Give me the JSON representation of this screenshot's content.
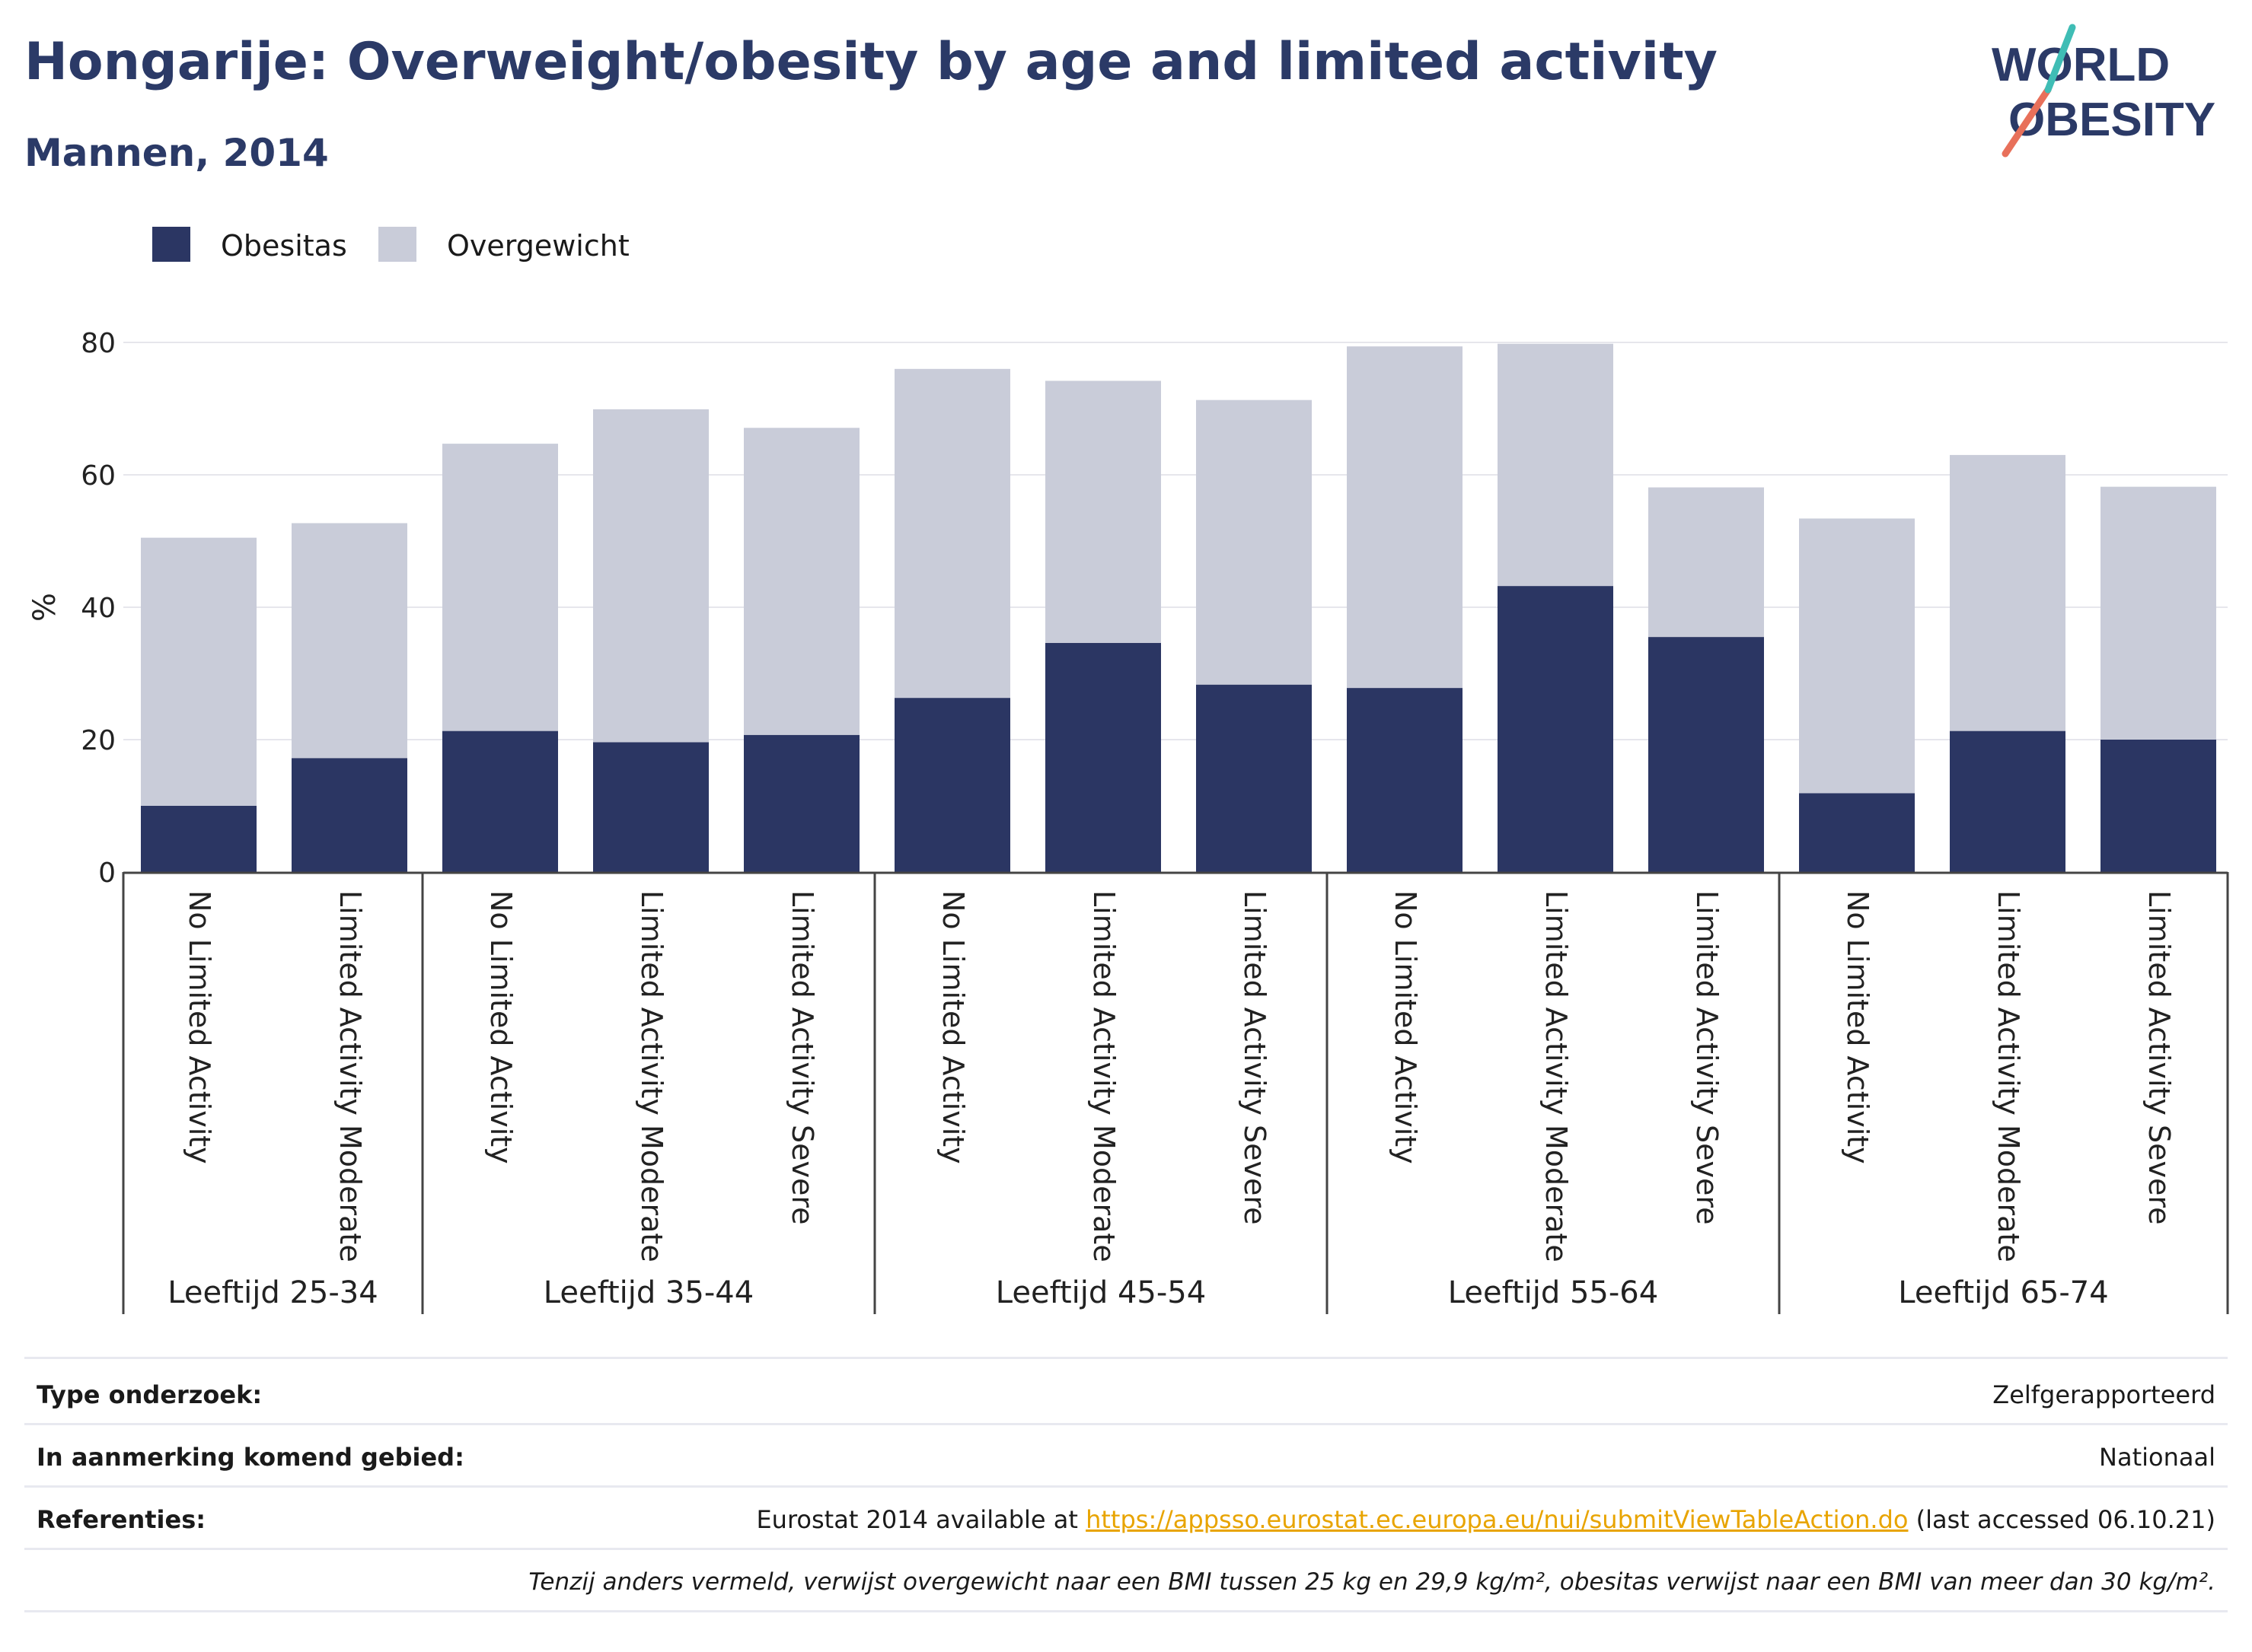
{
  "header": {
    "title": "Hongarije: Overweight/obesity by age and limited activity",
    "subtitle": "Mannen, 2014"
  },
  "logo": {
    "line1": "WORLD",
    "line2": "OBESITY"
  },
  "legend": [
    {
      "label": "Obesitas",
      "color": "#2b3663"
    },
    {
      "label": "Overgewicht",
      "color": "#c9ccd9"
    }
  ],
  "chart_data": {
    "type": "bar",
    "stacked": true,
    "ylabel": "%",
    "ylim": [
      0,
      80
    ],
    "yticks": [
      0,
      20,
      40,
      60,
      80
    ],
    "grid": true,
    "legend_position": "top-left",
    "groups": [
      {
        "label": "Leeftijd 25-34",
        "categories": [
          "No Limited Activity",
          "Limited Activity Moderate"
        ]
      },
      {
        "label": "Leeftijd 35-44",
        "categories": [
          "No Limited Activity",
          "Limited Activity Moderate",
          "Limited Activity Severe"
        ]
      },
      {
        "label": "Leeftijd 45-54",
        "categories": [
          "No Limited Activity",
          "Limited Activity Moderate",
          "Limited Activity Severe"
        ]
      },
      {
        "label": "Leeftijd 55-64",
        "categories": [
          "No Limited Activity",
          "Limited Activity Moderate",
          "Limited Activity Severe"
        ]
      },
      {
        "label": "Leeftijd 65-74",
        "categories": [
          "No Limited Activity",
          "Limited Activity Moderate",
          "Limited Activity Severe"
        ]
      }
    ],
    "series": [
      {
        "name": "Obesitas",
        "color": "#2b3663",
        "values": [
          10.0,
          17.2,
          21.3,
          19.6,
          20.7,
          26.3,
          34.6,
          28.3,
          27.8,
          43.2,
          35.5,
          11.9,
          21.3,
          20.0
        ]
      },
      {
        "name": "Overgewicht",
        "color": "#c9ccd9",
        "values": [
          40.5,
          35.5,
          43.4,
          50.3,
          46.4,
          49.7,
          39.6,
          43.0,
          51.6,
          36.6,
          22.6,
          41.5,
          41.7,
          38.2
        ]
      }
    ]
  },
  "meta": {
    "survey_type_label": "Type onderzoek:",
    "survey_type_value": "Zelfgerapporteerd",
    "area_label": "In aanmerking komend gebied:",
    "area_value": "Nationaal",
    "references_label": "Referenties:",
    "references_prefix": "Eurostat 2014 available at",
    "references_link": "https://appsso.eurostat.ec.europa.eu/nui/submitViewTableAction.do",
    "references_suffix": "(last accessed 06.10.21)",
    "note": "Tenzij anders vermeld, verwijst overgewicht naar een BMI tussen 25 kg en 29,9 kg/m², obesitas verwijst naar een BMI van meer dan 30 kg/m²."
  }
}
